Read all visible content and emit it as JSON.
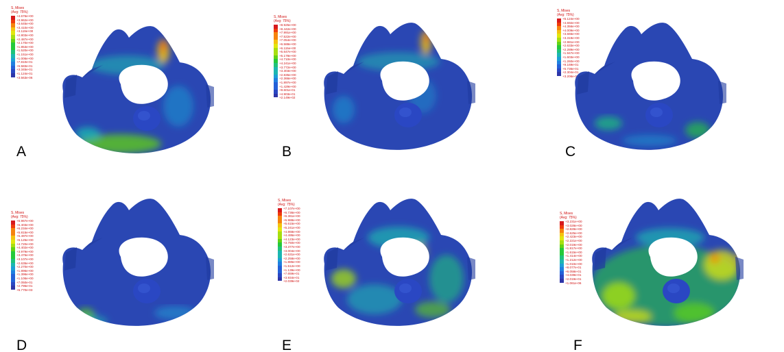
{
  "figure": {
    "colors": {
      "background": "#ffffff",
      "model_base": "#2a47b3",
      "legend_text": "#d01010",
      "panel_letter": "#000000",
      "contour_scale": [
        "#d7191c",
        "#f03b0b",
        "#f6830d",
        "#f5c20f",
        "#e2e60e",
        "#a7df10",
        "#62d315",
        "#25c93a",
        "#1ec27a",
        "#1cb6b1",
        "#1c9fd5",
        "#1f7fe0",
        "#2360d8",
        "#2a47c3",
        "#2e35a8"
      ]
    },
    "panels": [
      {
        "letter": "A",
        "legend_title": "S, Mises\n(Avg: 75%)",
        "legend_values": [
          "+4.676e+00",
          "+3.962e+00",
          "+3.645e+00",
          "+3.410e+00",
          "+3.119e+00",
          "+2.803e+00",
          "+2.487e+00",
          "+2.170e+00",
          "+1.853e+00",
          "+1.520e+00",
          "+1.151e+00",
          "+1.006e+00",
          "+7.810e-01",
          "+5.583e-01",
          "+3.345e-01",
          "+1.124e-01",
          "+3.563e-06"
        ],
        "stress_style": "A"
      },
      {
        "letter": "B",
        "legend_title": "S, Mises\n(Avg: 75%)",
        "legend_values": [
          "+8.925e+00",
          "+8.442e+00",
          "+7.991e+00",
          "+7.522e+00",
          "+7.054e+00",
          "+6.588e+00",
          "+6.115e+00",
          "+5.647e+00",
          "+5.178e+00",
          "+4.710e+00",
          "+4.241e+00",
          "+3.772e+00",
          "+3.303e+00",
          "+2.835e+00",
          "+2.366e+00",
          "+1.897e+00",
          "+1.429e+00",
          "+9.601e-01",
          "+4.903e-01",
          "+2.149e-02"
        ],
        "stress_style": "B"
      },
      {
        "letter": "C",
        "legend_title": "S, Mises\n(Avg: 75%)",
        "legend_values": [
          "+5.124e+00",
          "+4.692e+00",
          "+4.356e+00",
          "+4.009e+00",
          "+3.665e+00",
          "+3.319e+00",
          "+2.981e+00",
          "+2.633e+00",
          "+2.289e+00",
          "+1.947e+00",
          "+1.603e+00",
          "+1.260e+00",
          "+9.169e-01",
          "+5.736e-01",
          "+2.304e-01",
          "+3.206e-03"
        ],
        "stress_style": "C"
      },
      {
        "letter": "D",
        "legend_title": "S, Mises\n(Avg: 75%)",
        "legend_values": [
          "+6.967e+00",
          "+6.403e+00",
          "+6.234e+00",
          "+5.815e+00",
          "+5.497e+00",
          "+5.125e+00",
          "+4.720e+00",
          "+4.402e+00",
          "+3.979e+00",
          "+3.476e+00",
          "+3.107e+00",
          "+2.635e+00",
          "+2.270e+00",
          "+1.896e+00",
          "+1.396e+00",
          "+1.106e+00",
          "+7.050e-01",
          "+2.795e-01",
          "+5.770e-03"
        ],
        "stress_style": "D"
      },
      {
        "letter": "E",
        "legend_title": "S, Mises\n(Avg: 75%)",
        "legend_values": [
          "+7.107e+00",
          "+6.736e+00",
          "+6.361e+00",
          "+5.988e+00",
          "+5.615e+00",
          "+5.241e+00",
          "+4.868e+00",
          "+4.495e+00",
          "+4.123e+00",
          "+3.750e+00",
          "+3.377e+00",
          "+3.004e+00",
          "+2.631e+00",
          "+2.258e+00",
          "+1.885e+00",
          "+1.512e+00",
          "+1.139e+00",
          "+7.659e-01",
          "+3.934e-01",
          "+2.039e-02"
        ],
        "stress_style": "E"
      },
      {
        "letter": "F",
        "legend_title": "S, Mises\n(Avg: 75%)",
        "legend_values": [
          "+3.231e+00",
          "+3.028e+00",
          "+2.828e+00",
          "+2.625e+00",
          "+2.423e+00",
          "+2.221e+00",
          "+2.019e+00",
          "+1.817e+00",
          "+1.615e+00",
          "+1.414e+00",
          "+1.212e+00",
          "+1.010e+00",
          "+8.077e-01",
          "+6.058e-01",
          "+4.039e-01",
          "+2.019e-01",
          "+1.061e-06"
        ],
        "stress_style": "F"
      }
    ]
  }
}
